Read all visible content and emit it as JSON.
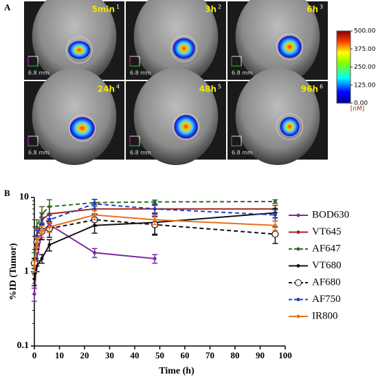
{
  "panel_a": {
    "label": "A",
    "images": [
      {
        "time": "5min",
        "index": "1",
        "scale": "6.8 mm"
      },
      {
        "time": "3h",
        "index": "2",
        "scale": "6.8 mm"
      },
      {
        "time": "6h",
        "index": "3",
        "scale": "6.8 mm"
      },
      {
        "time": "24h",
        "index": "4",
        "scale": "6.8 mm"
      },
      {
        "time": "48h",
        "index": "5",
        "scale": "6.8 mm"
      },
      {
        "time": "96h",
        "index": "6",
        "scale": "6.8 mm"
      }
    ],
    "colorbar": {
      "ticks": [
        {
          "value": 500,
          "label": "500.00"
        },
        {
          "value": 375,
          "label": "375.00"
        },
        {
          "value": 250,
          "label": "250.00"
        },
        {
          "value": 125,
          "label": "125.00"
        },
        {
          "value": 0,
          "label": "0.00"
        }
      ],
      "lim": [
        0,
        500
      ],
      "unit": "[nM]"
    }
  },
  "chart_data": {
    "type": "line",
    "panel_label": "B",
    "x_label": "Time (h)",
    "y_label": "%ID (Tumor)",
    "log_y": true,
    "x": [
      0,
      1,
      3,
      6,
      24,
      48,
      96
    ],
    "xlim": [
      0,
      100
    ],
    "xticks": [
      0,
      10,
      20,
      30,
      40,
      50,
      60,
      70,
      80,
      90,
      100
    ],
    "ylim": [
      0.1,
      10
    ],
    "yticks": [
      0.1,
      1,
      10
    ],
    "legend": "right",
    "series": [
      {
        "name": "BOD630",
        "color": "#7b2a9e",
        "dash": "solid",
        "marker": "circle",
        "values": [
          0.5,
          1.5,
          3.5,
          4.3,
          1.8,
          1.5,
          null
        ],
        "errors": [
          0.1,
          0.3,
          0.8,
          0.9,
          0.25,
          0.2,
          null
        ]
      },
      {
        "name": "VT645",
        "color": "#a4231c",
        "dash": "solid",
        "marker": "circle",
        "values": [
          1.3,
          3.0,
          5.0,
          6.0,
          7.0,
          7.0,
          7.0
        ],
        "errors": [
          0.2,
          0.8,
          1.2,
          1.5,
          1.0,
          0.8,
          0.8
        ]
      },
      {
        "name": "AF647",
        "color": "#2e6b1f",
        "dash": "dashed",
        "marker": "circle",
        "values": [
          1.5,
          4.0,
          6.0,
          7.5,
          8.5,
          8.7,
          8.8
        ],
        "errors": [
          0.3,
          1.0,
          1.5,
          1.8,
          0.9,
          0.5,
          0.5
        ]
      },
      {
        "name": "VT680",
        "color": "#111111",
        "dash": "solid",
        "marker": "circle",
        "values": [
          0.8,
          1.2,
          1.5,
          2.3,
          4.2,
          4.6,
          6.2
        ],
        "errors": [
          0.15,
          0.2,
          0.2,
          0.4,
          0.9,
          1.4,
          0.9
        ]
      },
      {
        "name": "AF680",
        "color": "#111111",
        "dash": "dashed",
        "marker": "open-circle",
        "values": [
          1.3,
          2.5,
          3.5,
          3.8,
          5.0,
          4.3,
          3.2
        ],
        "errors": [
          0.2,
          0.5,
          0.8,
          0.9,
          0.9,
          1.2,
          0.8
        ]
      },
      {
        "name": "AF750",
        "color": "#1f3fc4",
        "dash": "dashed",
        "marker": "circle",
        "values": [
          1.2,
          3.0,
          4.5,
          5.0,
          8.2,
          7.0,
          5.8
        ],
        "errors": [
          0.2,
          0.6,
          0.9,
          1.0,
          1.2,
          1.0,
          1.0
        ]
      },
      {
        "name": "IR800",
        "color": "#e8701e",
        "dash": "solid",
        "marker": "circle",
        "values": [
          1.2,
          2.5,
          3.5,
          4.0,
          5.8,
          5.0,
          4.2
        ],
        "errors": [
          0.2,
          0.4,
          0.6,
          0.6,
          0.8,
          0.7,
          0.6
        ]
      }
    ]
  }
}
